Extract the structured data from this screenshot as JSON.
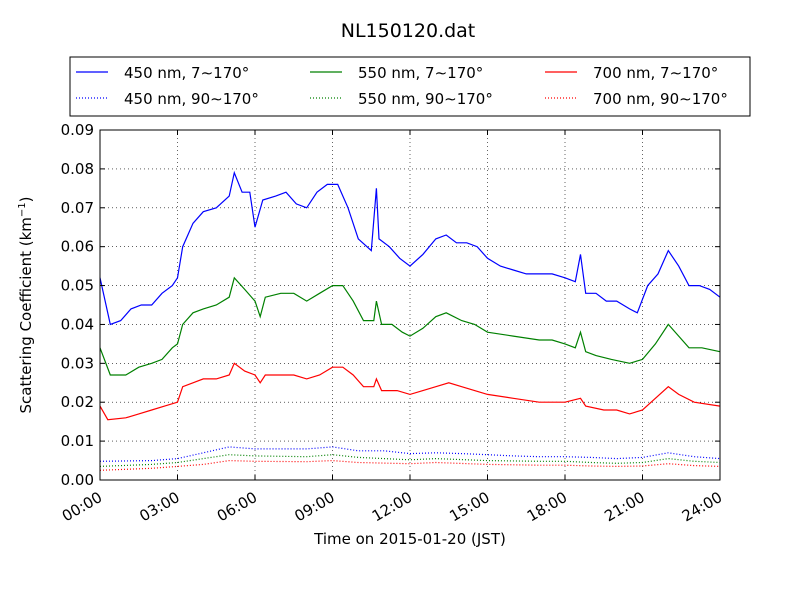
{
  "chart_data": {
    "type": "line",
    "title": "NL150120.dat",
    "xlabel": "Time on 2015-01-20 (JST)",
    "ylabel": "Scattering Coefficient (km",
    "ylabel_sup": "−1",
    "ylabel_close": ")",
    "x_ticks": [
      "00:00",
      "03:00",
      "06:00",
      "09:00",
      "12:00",
      "15:00",
      "18:00",
      "21:00",
      "24:00"
    ],
    "y_ticks": [
      "0.00",
      "0.01",
      "0.02",
      "0.03",
      "0.04",
      "0.05",
      "0.06",
      "0.07",
      "0.08",
      "0.09"
    ],
    "xlim_hours": [
      0,
      24
    ],
    "ylim": [
      0,
      0.09
    ],
    "grid": "dotted",
    "legend_position": "top (above plot area), 3 columns",
    "colors": {
      "450 nm": "#0000ff",
      "550 nm": "#008000",
      "700 nm": "#ff0000"
    },
    "series": [
      {
        "name": "450 nm, 7∼170°",
        "color": "#0000ff",
        "style": "solid",
        "points": [
          [
            0,
            0.052
          ],
          [
            0.4,
            0.04
          ],
          [
            0.8,
            0.041
          ],
          [
            1.2,
            0.044
          ],
          [
            1.6,
            0.045
          ],
          [
            2.0,
            0.045
          ],
          [
            2.4,
            0.048
          ],
          [
            2.8,
            0.05
          ],
          [
            3.0,
            0.052
          ],
          [
            3.2,
            0.06
          ],
          [
            3.6,
            0.066
          ],
          [
            4.0,
            0.069
          ],
          [
            4.5,
            0.07
          ],
          [
            5.0,
            0.073
          ],
          [
            5.2,
            0.079
          ],
          [
            5.5,
            0.074
          ],
          [
            5.8,
            0.074
          ],
          [
            6.0,
            0.065
          ],
          [
            6.3,
            0.072
          ],
          [
            6.8,
            0.073
          ],
          [
            7.2,
            0.074
          ],
          [
            7.6,
            0.071
          ],
          [
            8.0,
            0.07
          ],
          [
            8.4,
            0.074
          ],
          [
            8.8,
            0.076
          ],
          [
            9.2,
            0.076
          ],
          [
            9.6,
            0.07
          ],
          [
            10.0,
            0.062
          ],
          [
            10.5,
            0.059
          ],
          [
            10.7,
            0.075
          ],
          [
            10.8,
            0.062
          ],
          [
            11.2,
            0.06
          ],
          [
            11.6,
            0.057
          ],
          [
            12.0,
            0.055
          ],
          [
            12.5,
            0.058
          ],
          [
            13.0,
            0.062
          ],
          [
            13.4,
            0.063
          ],
          [
            13.8,
            0.061
          ],
          [
            14.2,
            0.061
          ],
          [
            14.6,
            0.06
          ],
          [
            15.0,
            0.057
          ],
          [
            15.5,
            0.055
          ],
          [
            16.0,
            0.054
          ],
          [
            16.5,
            0.053
          ],
          [
            17.0,
            0.053
          ],
          [
            17.5,
            0.053
          ],
          [
            18.0,
            0.052
          ],
          [
            18.4,
            0.051
          ],
          [
            18.6,
            0.058
          ],
          [
            18.8,
            0.048
          ],
          [
            19.2,
            0.048
          ],
          [
            19.6,
            0.046
          ],
          [
            20.0,
            0.046
          ],
          [
            20.5,
            0.044
          ],
          [
            20.8,
            0.043
          ],
          [
            21.2,
            0.05
          ],
          [
            21.6,
            0.053
          ],
          [
            22.0,
            0.059
          ],
          [
            22.4,
            0.055
          ],
          [
            22.8,
            0.05
          ],
          [
            23.2,
            0.05
          ],
          [
            23.6,
            0.049
          ],
          [
            24.0,
            0.047
          ]
        ]
      },
      {
        "name": "450 nm, 90∼170°",
        "color": "#0000ff",
        "style": "dotted",
        "points": [
          [
            0,
            0.0048
          ],
          [
            2.0,
            0.005
          ],
          [
            3.0,
            0.0055
          ],
          [
            4.0,
            0.007
          ],
          [
            5.0,
            0.0085
          ],
          [
            6.0,
            0.008
          ],
          [
            8.0,
            0.008
          ],
          [
            9.0,
            0.0085
          ],
          [
            10.0,
            0.0075
          ],
          [
            11.0,
            0.0075
          ],
          [
            12.0,
            0.0068
          ],
          [
            13.0,
            0.007
          ],
          [
            14.0,
            0.0068
          ],
          [
            15.0,
            0.0065
          ],
          [
            16.0,
            0.0062
          ],
          [
            17.0,
            0.006
          ],
          [
            18.0,
            0.006
          ],
          [
            19.0,
            0.0058
          ],
          [
            20.0,
            0.0055
          ],
          [
            21.0,
            0.0058
          ],
          [
            22.0,
            0.007
          ],
          [
            23.0,
            0.006
          ],
          [
            24.0,
            0.0055
          ]
        ]
      },
      {
        "name": "550 nm, 7∼170°",
        "color": "#008000",
        "style": "solid",
        "points": [
          [
            0,
            0.034
          ],
          [
            0.4,
            0.027
          ],
          [
            1.0,
            0.027
          ],
          [
            1.5,
            0.029
          ],
          [
            2.0,
            0.03
          ],
          [
            2.4,
            0.031
          ],
          [
            2.8,
            0.034
          ],
          [
            3.0,
            0.035
          ],
          [
            3.2,
            0.04
          ],
          [
            3.6,
            0.043
          ],
          [
            4.0,
            0.044
          ],
          [
            4.5,
            0.045
          ],
          [
            5.0,
            0.047
          ],
          [
            5.2,
            0.052
          ],
          [
            5.6,
            0.049
          ],
          [
            6.0,
            0.046
          ],
          [
            6.2,
            0.042
          ],
          [
            6.4,
            0.047
          ],
          [
            7.0,
            0.048
          ],
          [
            7.5,
            0.048
          ],
          [
            8.0,
            0.046
          ],
          [
            8.5,
            0.048
          ],
          [
            9.0,
            0.05
          ],
          [
            9.4,
            0.05
          ],
          [
            9.8,
            0.046
          ],
          [
            10.2,
            0.041
          ],
          [
            10.6,
            0.041
          ],
          [
            10.7,
            0.046
          ],
          [
            10.9,
            0.04
          ],
          [
            11.3,
            0.04
          ],
          [
            11.7,
            0.038
          ],
          [
            12.0,
            0.037
          ],
          [
            12.5,
            0.039
          ],
          [
            13.0,
            0.042
          ],
          [
            13.4,
            0.043
          ],
          [
            14.0,
            0.041
          ],
          [
            14.5,
            0.04
          ],
          [
            15.0,
            0.038
          ],
          [
            16.0,
            0.037
          ],
          [
            17.0,
            0.036
          ],
          [
            17.5,
            0.036
          ],
          [
            18.0,
            0.035
          ],
          [
            18.4,
            0.034
          ],
          [
            18.6,
            0.038
          ],
          [
            18.8,
            0.033
          ],
          [
            19.2,
            0.032
          ],
          [
            19.8,
            0.031
          ],
          [
            20.5,
            0.03
          ],
          [
            21.0,
            0.031
          ],
          [
            21.5,
            0.035
          ],
          [
            22.0,
            0.04
          ],
          [
            22.4,
            0.037
          ],
          [
            22.8,
            0.034
          ],
          [
            23.3,
            0.034
          ],
          [
            24.0,
            0.033
          ]
        ]
      },
      {
        "name": "550 nm, 90∼170°",
        "color": "#008000",
        "style": "dotted",
        "points": [
          [
            0,
            0.0035
          ],
          [
            2.0,
            0.004
          ],
          [
            3.0,
            0.0045
          ],
          [
            4.0,
            0.0055
          ],
          [
            5.0,
            0.0065
          ],
          [
            6.0,
            0.0062
          ],
          [
            8.0,
            0.006
          ],
          [
            9.0,
            0.0065
          ],
          [
            10.0,
            0.0058
          ],
          [
            12.0,
            0.0052
          ],
          [
            13.0,
            0.0055
          ],
          [
            15.0,
            0.005
          ],
          [
            17.0,
            0.0048
          ],
          [
            18.0,
            0.0048
          ],
          [
            19.0,
            0.0045
          ],
          [
            20.0,
            0.0043
          ],
          [
            21.0,
            0.0045
          ],
          [
            22.0,
            0.0055
          ],
          [
            23.0,
            0.0048
          ],
          [
            24.0,
            0.0045
          ]
        ]
      },
      {
        "name": "700 nm, 7∼170°",
        "color": "#ff0000",
        "style": "solid",
        "points": [
          [
            0,
            0.019
          ],
          [
            0.3,
            0.0155
          ],
          [
            1.0,
            0.016
          ],
          [
            1.5,
            0.017
          ],
          [
            2.0,
            0.018
          ],
          [
            2.5,
            0.019
          ],
          [
            3.0,
            0.02
          ],
          [
            3.2,
            0.024
          ],
          [
            3.6,
            0.025
          ],
          [
            4.0,
            0.026
          ],
          [
            4.5,
            0.026
          ],
          [
            5.0,
            0.027
          ],
          [
            5.2,
            0.03
          ],
          [
            5.6,
            0.028
          ],
          [
            6.0,
            0.027
          ],
          [
            6.2,
            0.025
          ],
          [
            6.4,
            0.027
          ],
          [
            7.0,
            0.027
          ],
          [
            7.5,
            0.027
          ],
          [
            8.0,
            0.026
          ],
          [
            8.5,
            0.027
          ],
          [
            9.0,
            0.029
          ],
          [
            9.4,
            0.029
          ],
          [
            9.8,
            0.027
          ],
          [
            10.2,
            0.024
          ],
          [
            10.6,
            0.024
          ],
          [
            10.7,
            0.026
          ],
          [
            10.9,
            0.023
          ],
          [
            11.5,
            0.023
          ],
          [
            12.0,
            0.022
          ],
          [
            12.5,
            0.023
          ],
          [
            13.0,
            0.024
          ],
          [
            13.5,
            0.025
          ],
          [
            14.0,
            0.024
          ],
          [
            14.5,
            0.023
          ],
          [
            15.0,
            0.022
          ],
          [
            16.0,
            0.021
          ],
          [
            17.0,
            0.02
          ],
          [
            17.5,
            0.02
          ],
          [
            18.0,
            0.02
          ],
          [
            18.6,
            0.021
          ],
          [
            18.8,
            0.019
          ],
          [
            19.5,
            0.018
          ],
          [
            20.0,
            0.018
          ],
          [
            20.5,
            0.017
          ],
          [
            21.0,
            0.018
          ],
          [
            21.5,
            0.021
          ],
          [
            22.0,
            0.024
          ],
          [
            22.4,
            0.022
          ],
          [
            23.0,
            0.02
          ],
          [
            24.0,
            0.019
          ]
        ]
      },
      {
        "name": "700 nm, 90∼170°",
        "color": "#ff0000",
        "style": "dotted",
        "points": [
          [
            0,
            0.0025
          ],
          [
            2.0,
            0.003
          ],
          [
            3.0,
            0.0035
          ],
          [
            4.0,
            0.004
          ],
          [
            5.0,
            0.005
          ],
          [
            6.0,
            0.0048
          ],
          [
            8.0,
            0.0047
          ],
          [
            9.0,
            0.005
          ],
          [
            10.0,
            0.0045
          ],
          [
            12.0,
            0.0042
          ],
          [
            13.0,
            0.0045
          ],
          [
            15.0,
            0.004
          ],
          [
            17.0,
            0.0038
          ],
          [
            18.0,
            0.0038
          ],
          [
            19.0,
            0.0036
          ],
          [
            20.0,
            0.0035
          ],
          [
            21.0,
            0.0036
          ],
          [
            22.0,
            0.0042
          ],
          [
            23.0,
            0.0037
          ],
          [
            24.0,
            0.0035
          ]
        ]
      }
    ]
  }
}
